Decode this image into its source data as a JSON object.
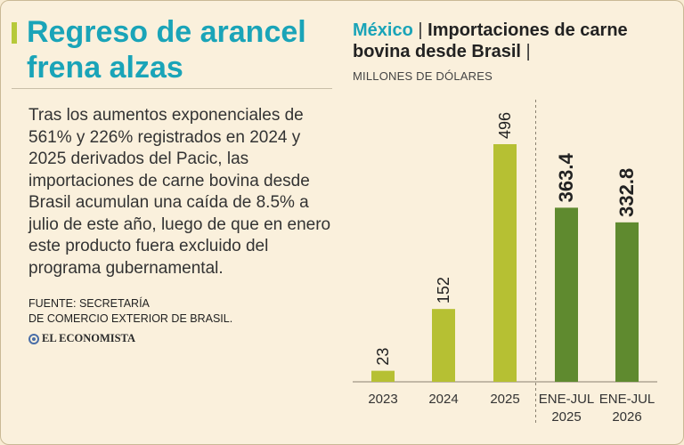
{
  "left": {
    "headline": "Regreso de arancel frena alzas",
    "body": "Tras los aumentos exponenciales de 561% y 226% registrados en 2024 y 2025 derivados del Pacic, las importaciones de carne bovina desde Brasil acumulan una caída de 8.5% a julio de este año, luego de que en enero este producto fuera excluido del programa gubernamental.",
    "source_line1": "FUENTE: SECRETARÍA",
    "source_line2": "DE COMERCIO EXTERIOR DE BRASIL.",
    "brand": "EL ECONOMISTA"
  },
  "colors": {
    "accent": "#1aa4b8",
    "bar_light": "#b6c033",
    "bar_dark": "#5f8a2f",
    "background": "#faf0dc"
  },
  "chart_data": {
    "type": "bar",
    "title_country": "México",
    "title_main": "Importaciones de carne bovina desde Brasil",
    "subtitle": "MILLONES DE DÓLARES",
    "categories": [
      [
        "2023"
      ],
      [
        "2024"
      ],
      [
        "2025"
      ],
      [
        "ENE-JUL",
        "2025"
      ],
      [
        "ENE-JUL",
        "2026"
      ]
    ],
    "values": [
      23,
      152,
      496,
      363.4,
      332.8
    ],
    "value_labels": [
      "23",
      "152",
      "496",
      "363.4",
      "332.8"
    ],
    "bar_colors": [
      "#b6c033",
      "#b6c033",
      "#b6c033",
      "#5f8a2f",
      "#5f8a2f"
    ],
    "label_bold": [
      false,
      false,
      false,
      true,
      true
    ],
    "ylim": [
      0,
      496
    ],
    "grid": false,
    "separator_after_index": 2
  }
}
